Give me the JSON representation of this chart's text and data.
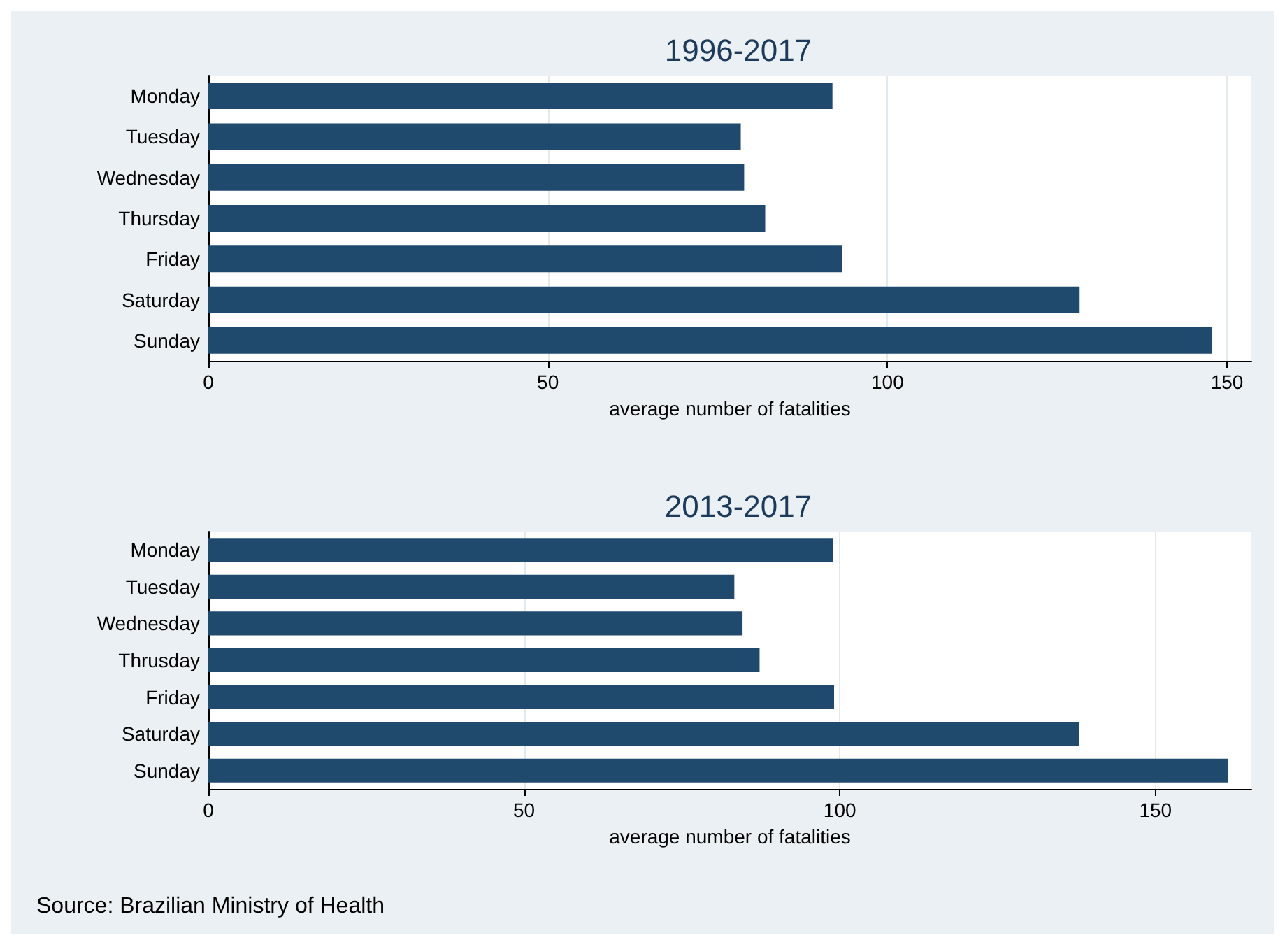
{
  "chart_data": [
    {
      "type": "bar",
      "orientation": "horizontal",
      "title": "1996-2017",
      "xlabel": "average number of fatalities",
      "categories": [
        "Monday",
        "Tuesday",
        "Wednesday",
        "Thursday",
        "Friday",
        "Saturday",
        "Sunday"
      ],
      "values": [
        91.9,
        78.4,
        78.9,
        82.0,
        93.3,
        128.3,
        147.8
      ],
      "color": "#1f4a6e",
      "xlim": [
        0,
        153.6
      ],
      "xticks": [
        0,
        50,
        100,
        150
      ],
      "grid": "x"
    },
    {
      "type": "bar",
      "orientation": "horizontal",
      "title": "2013-2017",
      "xlabel": "average number of fatalities",
      "categories": [
        "Monday",
        "Tuesday",
        "Wednesday",
        "Thrusday",
        "Friday",
        "Saturday",
        "Sunday"
      ],
      "values": [
        98.9,
        83.3,
        84.6,
        87.3,
        99.1,
        137.9,
        161.5
      ],
      "color": "#1f4a6e",
      "xlim": [
        0,
        165.2
      ],
      "xticks": [
        0,
        50,
        100,
        150
      ],
      "grid": "x",
      "annotations": [
        "Source: Brazilian Ministry of Health"
      ]
    }
  ]
}
